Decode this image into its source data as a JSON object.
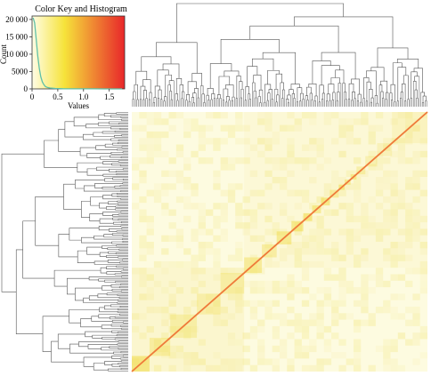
{
  "chart_data": {
    "type": "heatmap",
    "color_key": {
      "title": "Color Key and Histogram",
      "xlabel": "Values",
      "ylabel": "Count",
      "xticks": [
        "0",
        "0.5",
        "1.0",
        "1.5"
      ],
      "yticks": [
        "0",
        "5000",
        "10 000",
        "15 000",
        "20 000"
      ],
      "xlim": [
        0,
        1.8
      ],
      "ylim": [
        0,
        21000
      ],
      "colors": {
        "low": "#fffde6",
        "mid": "#f6e33a",
        "high": "#e8262a"
      },
      "histogram": {
        "x": [
          0.02,
          0.05,
          0.08,
          0.11,
          0.14,
          0.17,
          0.2,
          0.23,
          0.26,
          0.3,
          0.35,
          0.45,
          0.6,
          0.8,
          1.0,
          1.2,
          1.4,
          1.6,
          1.75
        ],
        "y": [
          20500,
          19000,
          14500,
          9500,
          6000,
          3500,
          2000,
          1200,
          700,
          400,
          250,
          120,
          60,
          30,
          20,
          15,
          12,
          10,
          10
        ]
      }
    },
    "heatmap": {
      "rows": 200,
      "cols": 200,
      "diagonal_value": 1.75,
      "background_value": 0.05,
      "block_pattern": "hierarchically clustered correlation blocks along the diagonal"
    },
    "dendrograms": {
      "row": "left",
      "column": "top"
    },
    "grid": false,
    "legend": "top-left"
  }
}
